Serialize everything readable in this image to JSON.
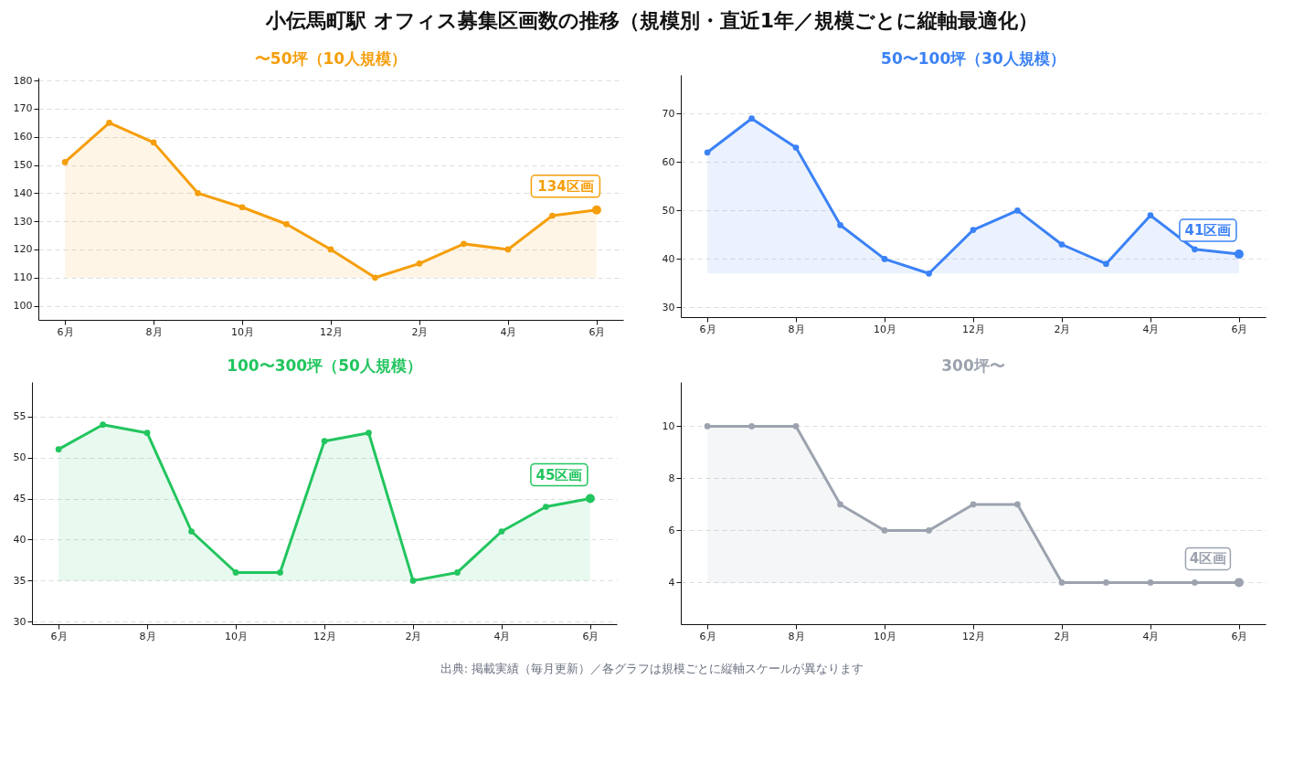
{
  "chart_data": [
    {
      "type": "other",
      "title": "小伝馬町駅 オフィス募集区画数の推移（規模別・直近1年／規模ごとに縦軸最適化）"
    },
    {
      "type": "area",
      "title": "〜50坪（10人規模）",
      "categories": [
        "6月",
        null,
        "8月",
        null,
        "10月",
        null,
        "12月",
        null,
        "2月",
        null,
        "4月",
        null,
        "6月"
      ],
      "series": [
        {
          "color": "#f59e0b",
          "values": [
            151,
            165,
            158,
            140,
            135,
            129,
            120,
            110,
            115,
            122,
            120,
            132,
            134
          ]
        }
      ],
      "ylim": [
        95,
        181
      ],
      "yticks": [
        100,
        110,
        120,
        130,
        140,
        150,
        160,
        170,
        180
      ],
      "grid": "y",
      "marker": "circle",
      "annotations": [
        "134区画"
      ]
    },
    {
      "type": "area",
      "title": "50〜100坪（30人規模）",
      "categories": [
        "6月",
        null,
        "8月",
        null,
        "10月",
        null,
        "12月",
        null,
        "2月",
        null,
        "4月",
        null,
        "6月"
      ],
      "series": [
        {
          "color": "#3b82f6",
          "values": [
            62,
            69,
            63,
            47,
            40,
            37,
            46,
            50,
            43,
            39,
            49,
            42,
            41
          ]
        }
      ],
      "ylim": [
        28,
        78
      ],
      "yticks": [
        30,
        40,
        50,
        60,
        70
      ],
      "grid": "y",
      "marker": "circle",
      "annotations": [
        "41区画"
      ]
    },
    {
      "type": "area",
      "title": "100〜300坪（50人規模）",
      "categories": [
        "6月",
        null,
        "8月",
        null,
        "10月",
        null,
        "12月",
        null,
        "2月",
        null,
        "4月",
        null,
        "6月"
      ],
      "series": [
        {
          "color": "#22c55e",
          "values": [
            51,
            54,
            53,
            41,
            36,
            36,
            52,
            53,
            35,
            36,
            41,
            44,
            45
          ]
        }
      ],
      "ylim": [
        29.7,
        59.2
      ],
      "yticks": [
        30,
        35,
        40,
        45,
        50,
        55
      ],
      "grid": "y",
      "marker": "circle",
      "annotations": [
        "45区画"
      ]
    },
    {
      "type": "area",
      "title": "300坪〜",
      "categories": [
        "6月",
        null,
        "8月",
        null,
        "10月",
        null,
        "12月",
        null,
        "2月",
        null,
        "4月",
        null,
        "6月"
      ],
      "series": [
        {
          "color": "#9ca3af",
          "values": [
            10,
            10,
            10,
            7,
            6,
            6,
            7,
            7,
            4,
            4,
            4,
            4,
            4
          ]
        }
      ],
      "ylim": [
        2.4,
        11.7
      ],
      "yticks": [
        4,
        6,
        8,
        10
      ],
      "grid": "y",
      "marker": "circle",
      "annotations": [
        "4区画"
      ]
    },
    {
      "type": "other",
      "annotations": [
        "出典: 掲載実績（毎月更新）／各グラフは規模ごとに縦軸スケールが異なります"
      ]
    }
  ]
}
